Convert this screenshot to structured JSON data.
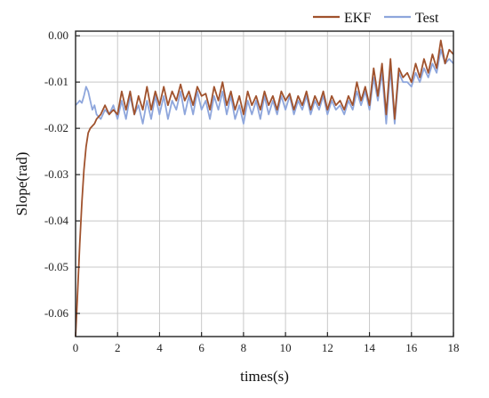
{
  "chart_data": {
    "type": "line",
    "title": "",
    "xlabel": "times(s)",
    "ylabel": "Slope(rad)",
    "xlim": [
      0,
      18
    ],
    "ylim": [
      -0.065,
      0.001
    ],
    "x_ticks": [
      0,
      2,
      4,
      6,
      8,
      10,
      12,
      14,
      16,
      18
    ],
    "x_tick_labels": [
      "0",
      "2",
      "4",
      "6",
      "8",
      "10",
      "12",
      "14",
      "16",
      "18"
    ],
    "y_ticks": [
      0,
      -0.01,
      -0.02,
      -0.03,
      -0.04,
      -0.05,
      -0.06
    ],
    "y_tick_labels": [
      "0.00",
      "-0.01",
      "-0.02",
      "-0.03",
      "-0.04",
      "-0.05",
      "-0.06"
    ],
    "grid": true,
    "legend_position": "top-right",
    "series": [
      {
        "name": "EKF",
        "color": "#a0522d",
        "x": [
          0,
          0.1,
          0.2,
          0.3,
          0.4,
          0.5,
          0.6,
          0.7,
          0.8,
          0.9,
          1.0,
          1.2,
          1.4,
          1.6,
          1.8,
          2.0,
          2.2,
          2.4,
          2.6,
          2.8,
          3.0,
          3.2,
          3.4,
          3.6,
          3.8,
          4.0,
          4.2,
          4.4,
          4.6,
          4.8,
          5.0,
          5.2,
          5.4,
          5.6,
          5.8,
          6.0,
          6.2,
          6.4,
          6.6,
          6.8,
          7.0,
          7.2,
          7.4,
          7.6,
          7.8,
          8.0,
          8.2,
          8.4,
          8.6,
          8.8,
          9.0,
          9.2,
          9.4,
          9.6,
          9.8,
          10.0,
          10.2,
          10.4,
          10.6,
          10.8,
          11.0,
          11.2,
          11.4,
          11.6,
          11.8,
          12.0,
          12.2,
          12.4,
          12.6,
          12.8,
          13.0,
          13.2,
          13.4,
          13.6,
          13.8,
          14.0,
          14.2,
          14.4,
          14.6,
          14.8,
          15.0,
          15.2,
          15.4,
          15.6,
          15.8,
          16.0,
          16.2,
          16.4,
          16.6,
          16.8,
          17.0,
          17.2,
          17.4,
          17.6,
          17.8,
          18.0
        ],
        "values": [
          -0.065,
          -0.055,
          -0.045,
          -0.036,
          -0.029,
          -0.024,
          -0.021,
          -0.02,
          -0.0195,
          -0.019,
          -0.018,
          -0.017,
          -0.015,
          -0.017,
          -0.016,
          -0.017,
          -0.012,
          -0.016,
          -0.012,
          -0.017,
          -0.013,
          -0.016,
          -0.011,
          -0.016,
          -0.012,
          -0.015,
          -0.011,
          -0.015,
          -0.012,
          -0.014,
          -0.0105,
          -0.014,
          -0.012,
          -0.015,
          -0.011,
          -0.013,
          -0.0125,
          -0.016,
          -0.011,
          -0.014,
          -0.01,
          -0.015,
          -0.012,
          -0.016,
          -0.013,
          -0.017,
          -0.012,
          -0.015,
          -0.013,
          -0.016,
          -0.012,
          -0.015,
          -0.013,
          -0.016,
          -0.012,
          -0.014,
          -0.0125,
          -0.016,
          -0.013,
          -0.015,
          -0.012,
          -0.016,
          -0.013,
          -0.015,
          -0.012,
          -0.016,
          -0.013,
          -0.015,
          -0.014,
          -0.016,
          -0.013,
          -0.015,
          -0.01,
          -0.014,
          -0.011,
          -0.015,
          -0.007,
          -0.013,
          -0.006,
          -0.017,
          -0.005,
          -0.018,
          -0.007,
          -0.009,
          -0.008,
          -0.01,
          -0.006,
          -0.009,
          -0.005,
          -0.008,
          -0.004,
          -0.007,
          -0.001,
          -0.006,
          -0.003,
          -0.004
        ]
      },
      {
        "name": "Test",
        "color": "#8ea6dc",
        "x": [
          0,
          0.1,
          0.2,
          0.3,
          0.4,
          0.5,
          0.6,
          0.7,
          0.8,
          0.9,
          1.0,
          1.2,
          1.4,
          1.6,
          1.8,
          2.0,
          2.2,
          2.4,
          2.6,
          2.8,
          3.0,
          3.2,
          3.4,
          3.6,
          3.8,
          4.0,
          4.2,
          4.4,
          4.6,
          4.8,
          5.0,
          5.2,
          5.4,
          5.6,
          5.8,
          6.0,
          6.2,
          6.4,
          6.6,
          6.8,
          7.0,
          7.2,
          7.4,
          7.6,
          7.8,
          8.0,
          8.2,
          8.4,
          8.6,
          8.8,
          9.0,
          9.2,
          9.4,
          9.6,
          9.8,
          10.0,
          10.2,
          10.4,
          10.6,
          10.8,
          11.0,
          11.2,
          11.4,
          11.6,
          11.8,
          12.0,
          12.2,
          12.4,
          12.6,
          12.8,
          13.0,
          13.2,
          13.4,
          13.6,
          13.8,
          14.0,
          14.2,
          14.4,
          14.6,
          14.8,
          15.0,
          15.2,
          15.4,
          15.6,
          15.8,
          16.0,
          16.2,
          16.4,
          16.6,
          16.8,
          17.0,
          17.2,
          17.4,
          17.6,
          17.8,
          18.0
        ],
        "values": [
          -0.015,
          -0.0145,
          -0.014,
          -0.0145,
          -0.013,
          -0.011,
          -0.012,
          -0.014,
          -0.016,
          -0.015,
          -0.017,
          -0.018,
          -0.016,
          -0.017,
          -0.015,
          -0.018,
          -0.014,
          -0.018,
          -0.013,
          -0.017,
          -0.015,
          -0.019,
          -0.014,
          -0.018,
          -0.013,
          -0.017,
          -0.013,
          -0.018,
          -0.014,
          -0.016,
          -0.012,
          -0.017,
          -0.013,
          -0.017,
          -0.012,
          -0.016,
          -0.014,
          -0.018,
          -0.013,
          -0.016,
          -0.012,
          -0.017,
          -0.013,
          -0.018,
          -0.015,
          -0.019,
          -0.014,
          -0.017,
          -0.014,
          -0.018,
          -0.013,
          -0.017,
          -0.014,
          -0.017,
          -0.013,
          -0.016,
          -0.013,
          -0.017,
          -0.014,
          -0.016,
          -0.013,
          -0.017,
          -0.014,
          -0.016,
          -0.013,
          -0.017,
          -0.014,
          -0.016,
          -0.015,
          -0.017,
          -0.014,
          -0.016,
          -0.012,
          -0.015,
          -0.012,
          -0.016,
          -0.009,
          -0.014,
          -0.008,
          -0.019,
          -0.007,
          -0.019,
          -0.008,
          -0.01,
          -0.01,
          -0.011,
          -0.008,
          -0.01,
          -0.007,
          -0.009,
          -0.006,
          -0.008,
          -0.003,
          -0.006,
          -0.005,
          -0.006
        ]
      }
    ]
  }
}
